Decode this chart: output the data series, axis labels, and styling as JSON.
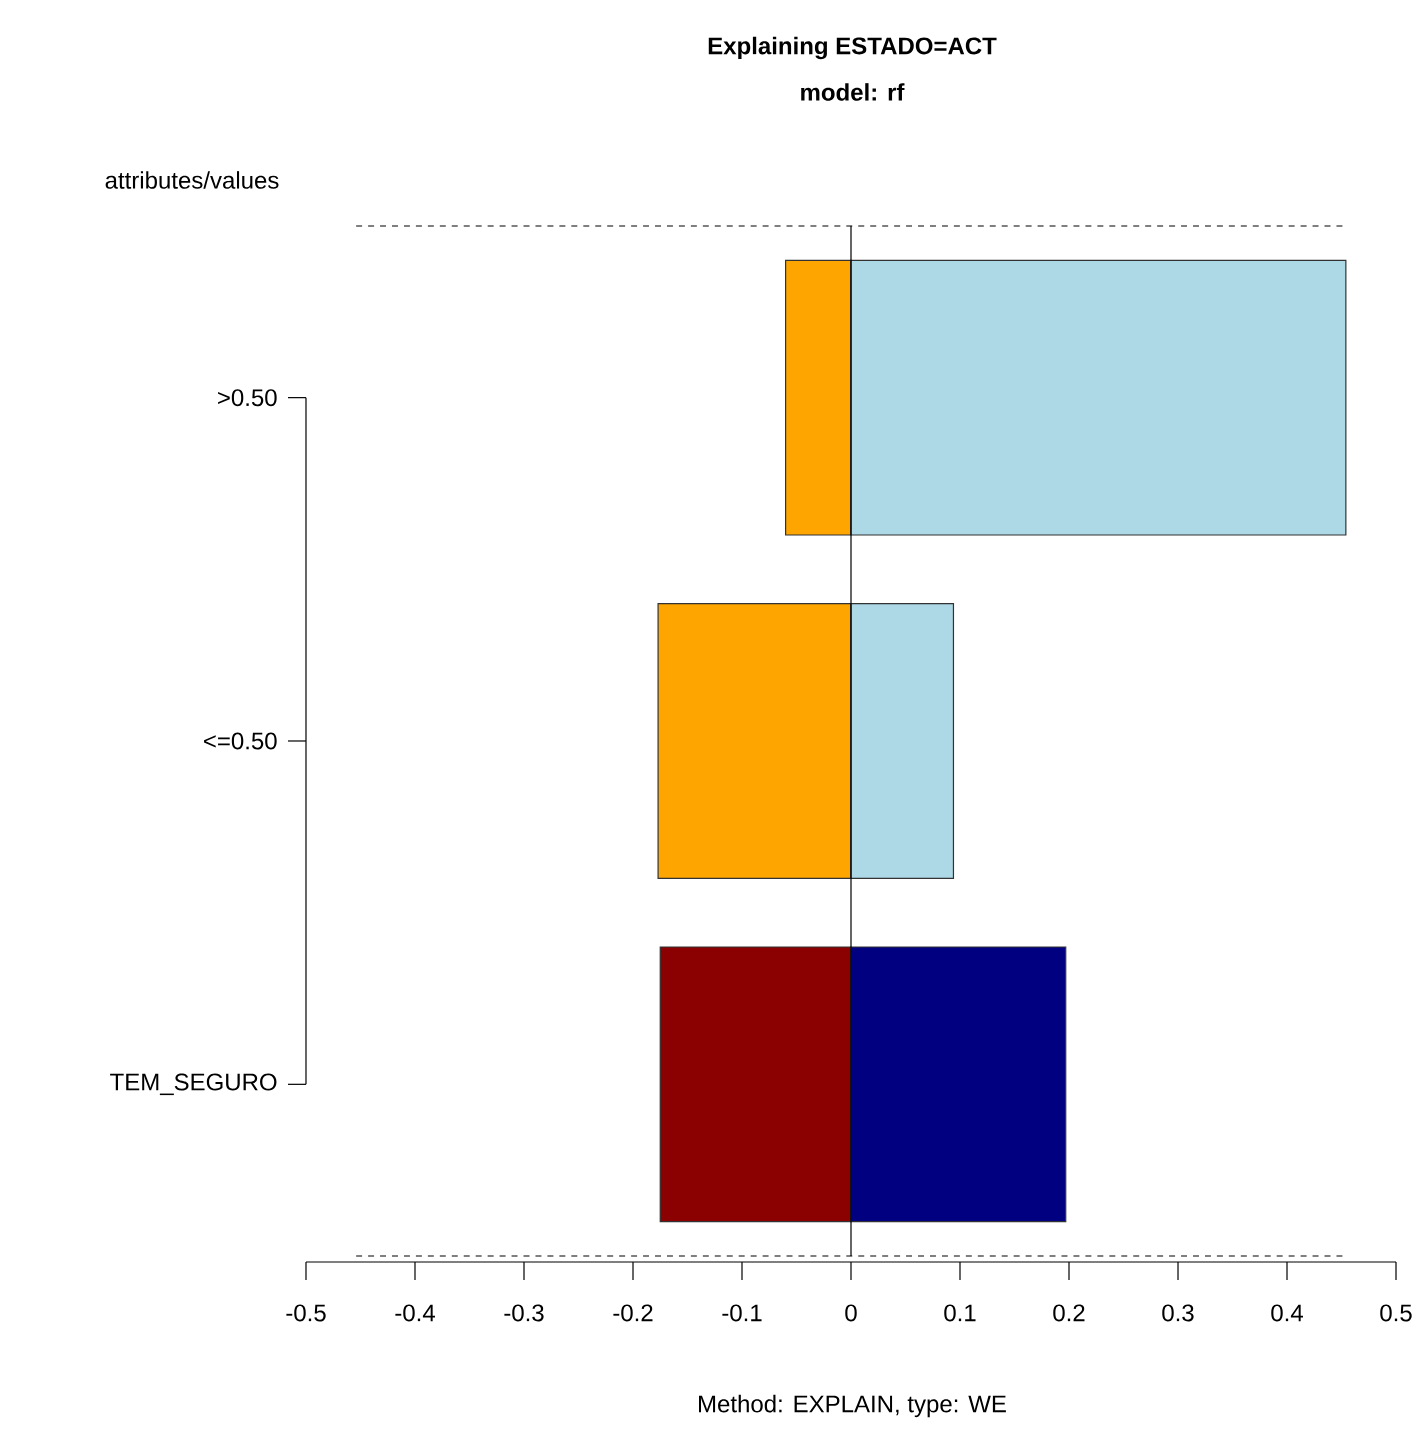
{
  "chart_data": {
    "type": "bar",
    "orientation": "horizontal",
    "title": "Explaining ESTADO=ACT",
    "subtitle": "model: rf",
    "ylabel": "attributes/values",
    "xlabel": "Method: EXPLAIN, type: WE",
    "categories": [
      ">0.50",
      "<=0.50",
      "TEM_SEGURO"
    ],
    "stacked": true,
    "series": [
      {
        "values": [
          -0.06,
          -0.177,
          -0.175
        ],
        "colors": [
          "#ffa500",
          "#ffa500",
          "#8b0000"
        ]
      },
      {
        "values": [
          0.454,
          0.094,
          0.197
        ],
        "colors": [
          "#add8e6",
          "#add8e6",
          "#000080"
        ]
      }
    ],
    "xlim": [
      -0.5,
      0.5
    ],
    "xticks": [
      -0.5,
      -0.4,
      -0.3,
      -0.2,
      -0.1,
      0,
      0.1,
      0.2,
      0.3,
      0.4,
      0.5
    ],
    "ref_lines": [
      {
        "axis": "x",
        "value": 0,
        "color": "#000000"
      }
    ]
  }
}
